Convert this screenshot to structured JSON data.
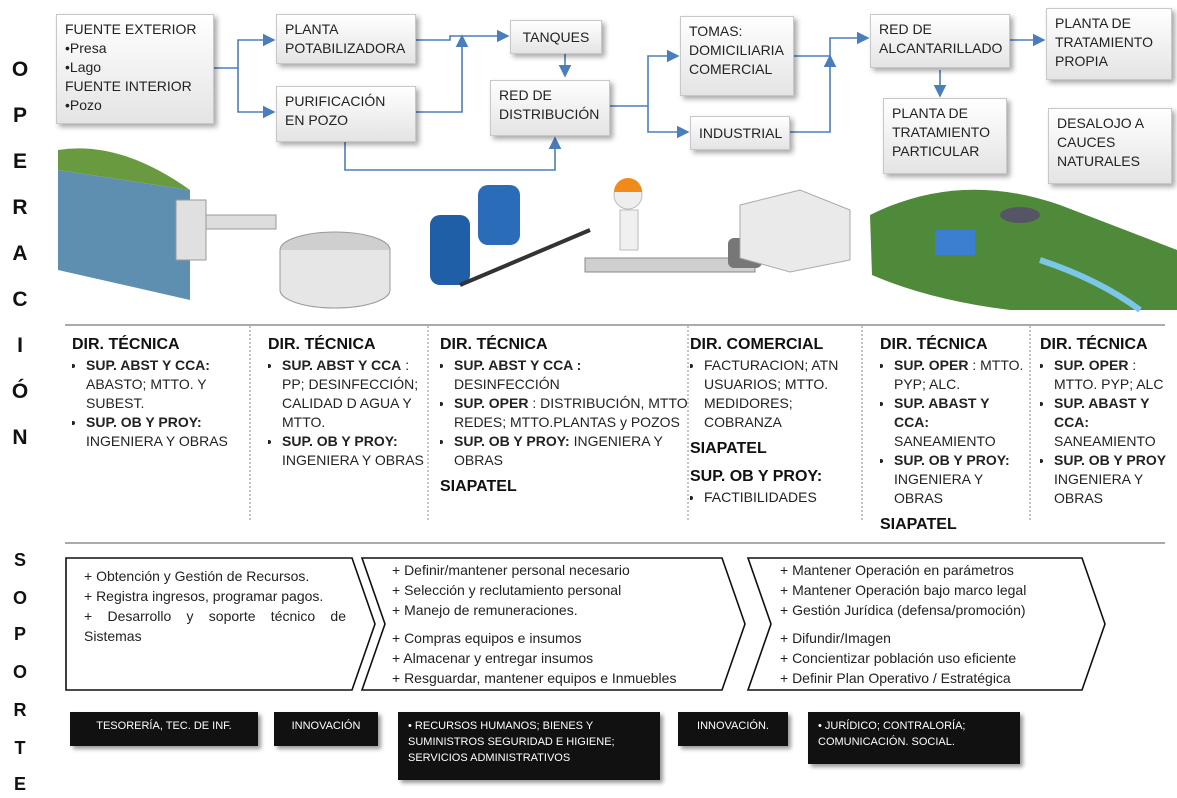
{
  "side_labels": {
    "operacion": [
      "O",
      "P",
      "E",
      "R",
      "A",
      "C",
      "I",
      "Ó",
      "N"
    ],
    "soporte": [
      "S",
      "O",
      "P",
      "O",
      "R",
      "T",
      "E"
    ]
  },
  "flow_boxes": [
    {
      "lines": [
        "FUENTE EXTERIOR",
        "•Presa",
        "•Lago",
        "FUENTE INTERIOR",
        "•Pozo"
      ]
    },
    {
      "lines": [
        "PLANTA",
        "POTABILIZADORA"
      ]
    },
    {
      "lines": [
        "PURIFICACIÓN",
        "EN POZO"
      ]
    },
    {
      "lines": [
        "TANQUES"
      ]
    },
    {
      "lines": [
        "RED DE",
        "DISTRIBUCIÓN"
      ]
    },
    {
      "lines": [
        "TOMAS:",
        "DOMICILIARIA",
        "COMERCIAL"
      ]
    },
    {
      "lines": [
        "INDUSTRIAL"
      ]
    },
    {
      "lines": [
        "RED DE",
        "ALCANTARILLADO"
      ]
    },
    {
      "lines": [
        "PLANTA DE",
        "TRATAMIENTO",
        "PROPIA"
      ]
    },
    {
      "lines": [
        "PLANTA DE",
        "TRATAMIENTO",
        "PARTICULAR"
      ]
    },
    {
      "lines": [
        "DESALOJO A",
        "CAUCES",
        "NATURALES"
      ]
    }
  ],
  "columns": [
    {
      "blocks": [
        {
          "heading": "DIR. TÉCNICA"
        },
        {
          "label": "SUP.  ABST Y CCA:",
          "text": "ABASTO;  MTTO. Y SUBEST."
        },
        {
          "label": "SUP.  OB Y PROY:",
          "text": "INGENIERA Y OBRAS"
        }
      ]
    },
    {
      "blocks": [
        {
          "heading": "DIR. TÉCNICA"
        },
        {
          "label": "SUP. ABST Y CCA",
          "text": ": PP; DESINFECCIÓN; CALIDAD D AGUA Y MTTO."
        },
        {
          "label": "SUP.  OB Y PROY:",
          "text": "INGENIERA Y OBRAS"
        }
      ]
    },
    {
      "blocks": [
        {
          "heading": "DIR. TÉCNICA"
        },
        {
          "label": "SUP. ABST Y CCA :",
          "text": "DESINFECCIÓN"
        },
        {
          "label": "SUP. OPER",
          "text": ": DISTRIBUCIÓN, MTTO REDES; MTTO.PLANTAS y POZOS"
        },
        {
          "label": "SUP.  OB Y PROY:",
          "text": "INGENIERA Y OBRAS"
        },
        {
          "heading": "SIAPATEL"
        }
      ]
    },
    {
      "blocks": [
        {
          "heading": "DIR. COMERCIAL"
        },
        {
          "text": "FACTURACION; ATN USUARIOS; MTTO. MEDIDORES; COBRANZA"
        },
        {
          "heading": "SIAPATEL"
        },
        {
          "heading": "SUP. OB Y PROY:"
        },
        {
          "text": "FACTIBILIDADES"
        }
      ]
    },
    {
      "blocks": [
        {
          "heading": "DIR. TÉCNICA"
        },
        {
          "label": "SUP. OPER",
          "text": ": MTTO. PYP; ALC."
        },
        {
          "label": "SUP. ABAST Y CCA:",
          "text": "SANEAMIENTO"
        },
        {
          "label": "SUP.  OB Y PROY:",
          "text": "INGENIERA Y OBRAS"
        },
        {
          "heading": "SIAPATEL"
        }
      ]
    },
    {
      "blocks": [
        {
          "heading": "DIR. TÉCNICA"
        },
        {
          "label": "SUP. OPER",
          "text": ": MTTO. PYP; ALC"
        },
        {
          "label": "SUP. ABAST Y CCA:",
          "text": "SANEAMIENTO"
        },
        {
          "label": "SUP.  OB Y PROY",
          "text": "INGENIERA Y OBRAS"
        }
      ]
    }
  ],
  "chevrons": [
    {
      "lines": [
        "+ Obtención y Gestión de Recursos.",
        "+ Registra ingresos, programar pagos.",
        "+ Desarrollo y soporte técnico de Sistemas"
      ]
    },
    {
      "lines": [
        "+ Definir/mantener personal necesario",
        "+ Selección y reclutamiento personal",
        "+ Manejo de remuneraciones.",
        "+ Compras equipos e insumos",
        "+ Almacenar y entregar insumos",
        "+ Resguardar, mantener equipos e Inmuebles"
      ]
    },
    {
      "lines": [
        "+ Mantener Operación en parámetros",
        "+ Mantener Operación bajo marco legal",
        "+ Gestión Jurídica (defensa/promoción)",
        "+ Difundir/Imagen",
        "+ Concientizar población uso eficiente",
        "+ Definir  Plan  Operativo / Estratégica"
      ]
    }
  ],
  "units": [
    "TESORERÍA, TEC. DE INF.",
    "INNOVACIÓN",
    "• RECURSOS HUMANOS; BIENES Y SUMINISTROS SEGURIDAD E HIGIENE; SERVICIOS ADMINISTRATIVOS",
    "INNOVACIÓN.",
    "• JURÍDICO; CONTRALORÍA; COMUNICACIÓN. SOCIAL."
  ]
}
